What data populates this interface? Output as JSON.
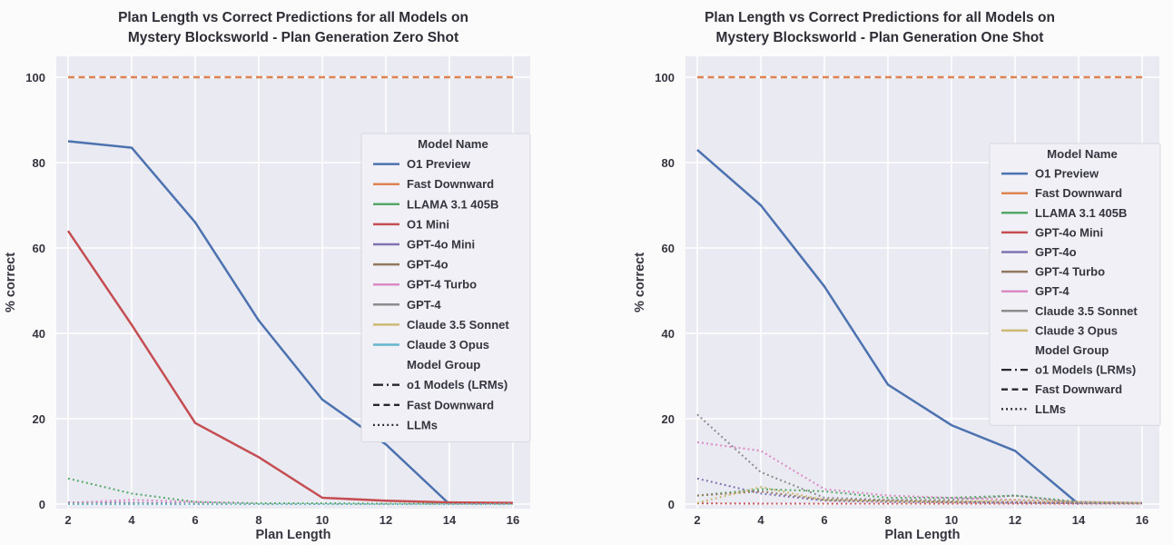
{
  "page": {
    "background": "#fbfbfc",
    "plot_background": "#eaeaf2",
    "grid_color": "#ffffff",
    "text_color": "#35353f",
    "title_color": "#2d2d36",
    "legend_background": "#f0f0f6",
    "legend_border": "#d8d8e0",
    "group_swatch_color": "#26262e"
  },
  "chart_data": [
    {
      "type": "line",
      "title_lines": [
        "Plan Length vs Correct Predictions for all Models on",
        "Mystery Blocksworld - Plan Generation Zero Shot"
      ],
      "xlabel": "Plan Length",
      "ylabel": "% correct",
      "xticks": [
        2,
        4,
        6,
        8,
        10,
        12,
        14,
        16
      ],
      "yticks": [
        0,
        20,
        40,
        60,
        80,
        100
      ],
      "xlim": [
        2,
        16
      ],
      "ylim": [
        0,
        105
      ],
      "grid": true,
      "legend": {
        "position": "inside-right",
        "model_name_header": "Model Name",
        "model_group_header": "Model Group",
        "groups": [
          {
            "label": "o1 Models (LRMs)",
            "style": "dashdot"
          },
          {
            "label": "Fast Downward",
            "style": "dashed"
          },
          {
            "label": "LLMs",
            "style": "dotted"
          }
        ]
      },
      "series": [
        {
          "name": "O1 Preview",
          "color": "#4C72B0",
          "style": "solid",
          "x": [
            2,
            4,
            6,
            8,
            10,
            12,
            14
          ],
          "y": [
            85,
            83.5,
            66,
            43,
            24.5,
            14,
            0
          ]
        },
        {
          "name": "Fast Downward",
          "color": "#DD8452",
          "style": "dashed",
          "x": [
            2,
            4,
            6,
            8,
            10,
            12,
            14,
            16
          ],
          "y": [
            100,
            100,
            100,
            100,
            100,
            100,
            100,
            100
          ]
        },
        {
          "name": "LLAMA 3.1 405B",
          "color": "#55A868",
          "style": "dotted",
          "x": [
            2,
            4,
            6,
            8,
            10,
            12,
            14,
            16
          ],
          "y": [
            6,
            2.5,
            0.5,
            0.2,
            0.2,
            0.1,
            0.1,
            0.1
          ]
        },
        {
          "name": "O1 Mini",
          "color": "#C44E52",
          "style": "solid",
          "x": [
            2,
            4,
            6,
            8,
            10,
            12,
            14,
            16
          ],
          "y": [
            64,
            42,
            19,
            11,
            1.5,
            0.8,
            0.4,
            0.3
          ]
        },
        {
          "name": "GPT-4o Mini",
          "color": "#8172B3",
          "style": "dotted",
          "x": [
            2,
            4,
            6,
            8,
            10,
            12,
            14,
            16
          ],
          "y": [
            0.4,
            0.3,
            0.1,
            0,
            0,
            0,
            0,
            0
          ]
        },
        {
          "name": "GPT-4o",
          "color": "#937860",
          "style": "dotted",
          "x": [
            2,
            4,
            6,
            8,
            10,
            12,
            14,
            16
          ],
          "y": [
            0,
            0,
            0,
            0,
            0,
            0,
            0,
            0
          ]
        },
        {
          "name": "GPT-4 Turbo",
          "color": "#DA8BC3",
          "style": "dotted",
          "x": [
            2,
            4,
            6,
            8,
            10,
            12,
            14,
            16
          ],
          "y": [
            0.3,
            1,
            0.5,
            0,
            0,
            0,
            0,
            0
          ]
        },
        {
          "name": "GPT-4",
          "color": "#8C8C8C",
          "style": "dotted",
          "x": [
            2,
            4,
            6,
            8,
            10,
            12,
            14,
            16
          ],
          "y": [
            0.2,
            0.1,
            0,
            0,
            0,
            0,
            0,
            0
          ]
        },
        {
          "name": "Claude 3.5 Sonnet",
          "color": "#CCB974",
          "style": "dotted",
          "x": [
            2,
            4,
            6,
            8,
            10,
            12,
            14,
            16
          ],
          "y": [
            0,
            0,
            0,
            0,
            0,
            0,
            0,
            0
          ]
        },
        {
          "name": "Claude 3 Opus",
          "color": "#64B5CD",
          "style": "dotted",
          "x": [
            2,
            4,
            6,
            8,
            10,
            12,
            14,
            16
          ],
          "y": [
            0,
            0,
            0,
            0,
            0,
            0,
            0,
            0
          ]
        }
      ]
    },
    {
      "type": "line",
      "title_lines": [
        "Plan Length vs Correct Predictions for all Models on",
        "Mystery Blocksworld - Plan Generation One Shot"
      ],
      "xlabel": "Plan Length",
      "ylabel": "% correct",
      "xticks": [
        2,
        4,
        6,
        8,
        10,
        12,
        14,
        16
      ],
      "yticks": [
        0,
        20,
        40,
        60,
        80,
        100
      ],
      "xlim": [
        2,
        16
      ],
      "ylim": [
        0,
        105
      ],
      "grid": true,
      "legend": {
        "position": "inside-right",
        "model_name_header": "Model Name",
        "model_group_header": "Model Group",
        "groups": [
          {
            "label": "o1 Models (LRMs)",
            "style": "dashdot"
          },
          {
            "label": "Fast Downward",
            "style": "dashed"
          },
          {
            "label": "LLMs",
            "style": "dotted"
          }
        ]
      },
      "series": [
        {
          "name": "O1 Preview",
          "color": "#4C72B0",
          "style": "solid",
          "x": [
            2,
            4,
            6,
            8,
            10,
            12,
            14
          ],
          "y": [
            83,
            70,
            51,
            28,
            18.5,
            12.5,
            0
          ]
        },
        {
          "name": "Fast Downward",
          "color": "#DD8452",
          "style": "dashed",
          "x": [
            2,
            4,
            6,
            8,
            10,
            12,
            14,
            16
          ],
          "y": [
            100,
            100,
            100,
            100,
            100,
            100,
            100,
            100
          ]
        },
        {
          "name": "LLAMA 3.1 405B",
          "color": "#55A868",
          "style": "dotted",
          "x": [
            2,
            4,
            6,
            8,
            10,
            12,
            14,
            16
          ],
          "y": [
            2,
            3.5,
            3,
            1.5,
            1.5,
            2,
            0.5,
            0.3
          ]
        },
        {
          "name": "GPT-4o Mini",
          "color": "#C44E52",
          "style": "dotted",
          "x": [
            2,
            4,
            6,
            8,
            10,
            12,
            14,
            16
          ],
          "y": [
            0.2,
            0.1,
            0.1,
            0.1,
            0.1,
            0.1,
            0.1,
            0.1
          ]
        },
        {
          "name": "GPT-4o",
          "color": "#8172B3",
          "style": "dotted",
          "x": [
            2,
            4,
            6,
            8,
            10,
            12,
            14,
            16
          ],
          "y": [
            6,
            2.5,
            0.8,
            0.5,
            0.4,
            0.3,
            0.2,
            0.2
          ]
        },
        {
          "name": "GPT-4 Turbo",
          "color": "#937860",
          "style": "dotted",
          "x": [
            2,
            4,
            6,
            8,
            10,
            12,
            14,
            16
          ],
          "y": [
            2,
            3,
            1,
            0.8,
            0.6,
            0.5,
            0.3,
            0.2
          ]
        },
        {
          "name": "GPT-4",
          "color": "#DA8BC3",
          "style": "dotted",
          "x": [
            2,
            4,
            6,
            8,
            10,
            12,
            14,
            16
          ],
          "y": [
            14.5,
            12.5,
            3.5,
            2,
            1.5,
            1,
            0.5,
            0.3
          ]
        },
        {
          "name": "Claude 3.5 Sonnet",
          "color": "#8C8C8C",
          "style": "dotted",
          "x": [
            2,
            4,
            6,
            8,
            10,
            12,
            14,
            16
          ],
          "y": [
            21,
            7.5,
            1.5,
            1,
            1,
            2,
            0.3,
            0.2
          ]
        },
        {
          "name": "Claude 3 Opus",
          "color": "#CCB974",
          "style": "dotted",
          "x": [
            2,
            4,
            6,
            8,
            10,
            12,
            14,
            16
          ],
          "y": [
            0.3,
            4,
            1,
            0.7,
            0.5,
            1,
            0.5,
            0.3
          ]
        }
      ]
    }
  ]
}
